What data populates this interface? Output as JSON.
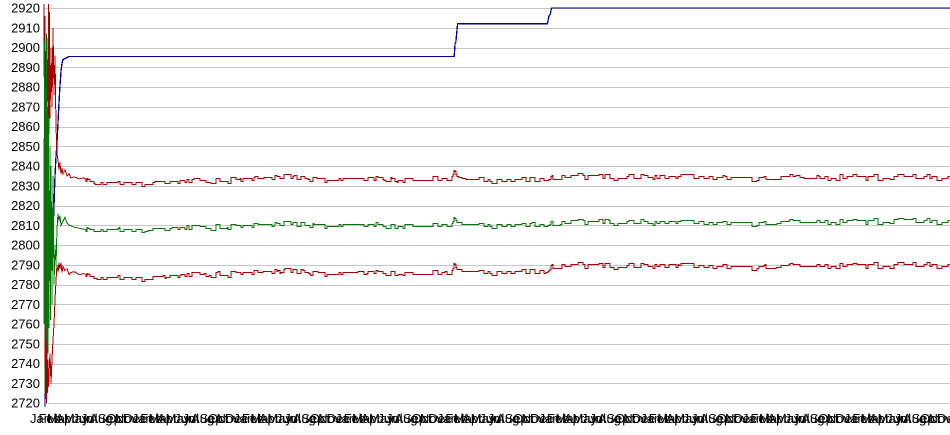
{
  "window": {
    "background": "#ffffff"
  },
  "chart_data": {
    "type": "line",
    "title": "",
    "subtitle": "",
    "legend": "none",
    "grid": true,
    "ylim": [
      2720,
      2920
    ],
    "y_tick_step": 10,
    "y_tick_labels": [
      "2920",
      "2910",
      "2900",
      "2890",
      "2880",
      "2870",
      "2860",
      "2850",
      "2840",
      "2830",
      "2820",
      "2810",
      "2800",
      "2790",
      "2780",
      "2770",
      "2760",
      "2750",
      "2740",
      "2730",
      "2720"
    ],
    "x_axis": {
      "labels_cycle": [
        "Jan",
        "Feb",
        "Mar",
        "Apr",
        "May",
        "Jun",
        "Jul",
        "Aug",
        "Sep",
        "Oct",
        "Nov",
        "Dec"
      ],
      "repeat": 9,
      "note_first_visible_label": "Jan"
    },
    "colors": {
      "navy": "#0000a0",
      "red": "#a80000",
      "green": "#087408",
      "gridline": "#c6c6c6",
      "label": "#000000"
    },
    "noise": {
      "seed": 7,
      "start_t": 5.0,
      "amp": 1.1
    },
    "series": [
      {
        "name": "navy-upper-step",
        "color_key": "navy",
        "noisy": false,
        "width": 1.3,
        "points": [
          [
            0.12,
            2718
          ],
          [
            0.16,
            2760
          ],
          [
            0.2,
            2755
          ],
          [
            0.36,
            2768
          ],
          [
            0.48,
            2780
          ],
          [
            0.6,
            2790
          ],
          [
            0.72,
            2787
          ],
          [
            0.84,
            2800
          ],
          [
            0.95,
            2810
          ],
          [
            1.07,
            2806
          ],
          [
            1.19,
            2820
          ],
          [
            1.31,
            2835
          ],
          [
            1.43,
            2845
          ],
          [
            1.55,
            2852
          ],
          [
            1.67,
            2862
          ],
          [
            1.79,
            2872
          ],
          [
            1.9,
            2880
          ],
          [
            2.03,
            2888
          ],
          [
            2.15,
            2892
          ],
          [
            2.27,
            2894
          ],
          [
            3.0,
            2895.5
          ],
          [
            48.9,
            2895.5
          ],
          [
            49.0,
            2902
          ],
          [
            49.1,
            2903
          ],
          [
            49.3,
            2912
          ],
          [
            60.0,
            2912
          ],
          [
            60.2,
            2916
          ],
          [
            60.35,
            2917
          ],
          [
            60.5,
            2920
          ],
          [
            108,
            2920
          ]
        ]
      },
      {
        "name": "red-upper-band",
        "color_key": "red",
        "noisy": true,
        "width": 1,
        "points": [
          [
            0.0,
            2922
          ],
          [
            0.06,
            2850
          ],
          [
            0.12,
            2916
          ],
          [
            0.24,
            2848
          ],
          [
            0.36,
            2905
          ],
          [
            0.48,
            2862
          ],
          [
            0.55,
            2922
          ],
          [
            0.6,
            2856
          ],
          [
            0.66,
            2918
          ],
          [
            0.72,
            2864
          ],
          [
            0.84,
            2900
          ],
          [
            0.95,
            2870
          ],
          [
            1.07,
            2910
          ],
          [
            1.19,
            2876
          ],
          [
            1.31,
            2896
          ],
          [
            1.43,
            2860
          ],
          [
            1.55,
            2846
          ],
          [
            1.67,
            2843
          ],
          [
            1.79,
            2838
          ],
          [
            1.9,
            2842
          ],
          [
            2.03,
            2836
          ],
          [
            2.15,
            2839
          ],
          [
            2.27,
            2836
          ],
          [
            2.5,
            2838
          ],
          [
            2.75,
            2835
          ],
          [
            3.0,
            2836
          ],
          [
            3.2,
            2834
          ],
          [
            3.6,
            2834.5
          ],
          [
            4.2,
            2833.5
          ],
          [
            4.8,
            2834
          ],
          [
            5.4,
            2832.5
          ],
          [
            6.6,
            2832
          ],
          [
            9,
            2831.8
          ],
          [
            12.5,
            2832
          ],
          [
            14.9,
            2832.5
          ],
          [
            18.5,
            2833
          ],
          [
            22,
            2833.5
          ],
          [
            25.7,
            2834
          ],
          [
            28.6,
            2835
          ],
          [
            30.4,
            2835.3
          ],
          [
            32.8,
            2834
          ],
          [
            36.4,
            2834
          ],
          [
            40,
            2834.3
          ],
          [
            43.6,
            2834
          ],
          [
            48.7,
            2834
          ],
          [
            48.9,
            2837.8
          ],
          [
            49.2,
            2834
          ],
          [
            50.7,
            2833.5
          ],
          [
            54.3,
            2833.5
          ],
          [
            57.9,
            2833.6
          ],
          [
            60,
            2833.8
          ],
          [
            60.5,
            2835.3
          ],
          [
            63.8,
            2835.5
          ],
          [
            68.6,
            2835
          ],
          [
            72.2,
            2835.3
          ],
          [
            78.2,
            2835
          ],
          [
            81.7,
            2834.3
          ],
          [
            85.3,
            2834.2
          ],
          [
            90.1,
            2835.3
          ],
          [
            96.1,
            2835
          ],
          [
            102,
            2835.2
          ],
          [
            108,
            2834.8
          ]
        ]
      },
      {
        "name": "green-mid-band",
        "color_key": "green",
        "noisy": true,
        "width": 1,
        "points": [
          [
            0.0,
            2760
          ],
          [
            0.05,
            2903
          ],
          [
            0.12,
            2725
          ],
          [
            0.2,
            2880
          ],
          [
            0.24,
            2735
          ],
          [
            0.3,
            2907
          ],
          [
            0.36,
            2730
          ],
          [
            0.42,
            2870
          ],
          [
            0.48,
            2745
          ],
          [
            0.55,
            2865
          ],
          [
            0.6,
            2758
          ],
          [
            0.72,
            2850
          ],
          [
            0.78,
            2762
          ],
          [
            0.84,
            2840
          ],
          [
            0.95,
            2770
          ],
          [
            1.07,
            2835
          ],
          [
            1.19,
            2780
          ],
          [
            1.31,
            2800
          ],
          [
            1.43,
            2790
          ],
          [
            1.55,
            2808
          ],
          [
            1.67,
            2816
          ],
          [
            1.79,
            2812
          ],
          [
            1.9,
            2815
          ],
          [
            2.03,
            2810
          ],
          [
            2.27,
            2812
          ],
          [
            2.5,
            2814
          ],
          [
            2.75,
            2811
          ],
          [
            3.0,
            2810
          ],
          [
            3.6,
            2809
          ],
          [
            4.2,
            2808.5
          ],
          [
            5.4,
            2808
          ],
          [
            7.8,
            2808
          ],
          [
            11.3,
            2808.3
          ],
          [
            14.9,
            2808.8
          ],
          [
            18.5,
            2809.5
          ],
          [
            22,
            2810
          ],
          [
            25.7,
            2810.5
          ],
          [
            28.6,
            2811.3
          ],
          [
            30.4,
            2811.8
          ],
          [
            32.8,
            2810.5
          ],
          [
            36.4,
            2810.5
          ],
          [
            40,
            2810.8
          ],
          [
            43.6,
            2810.5
          ],
          [
            48.7,
            2810.6
          ],
          [
            48.9,
            2813.8
          ],
          [
            49.2,
            2810.8
          ],
          [
            50.7,
            2810.5
          ],
          [
            54.3,
            2810.5
          ],
          [
            57.9,
            2810.6
          ],
          [
            60,
            2810.8
          ],
          [
            60.5,
            2812.3
          ],
          [
            63.8,
            2812.5
          ],
          [
            68.6,
            2812
          ],
          [
            72.2,
            2812.3
          ],
          [
            78.2,
            2812
          ],
          [
            81.7,
            2811.5
          ],
          [
            85.3,
            2811.4
          ],
          [
            90.1,
            2812.8
          ],
          [
            96.1,
            2812.5
          ],
          [
            102,
            2813
          ],
          [
            108,
            2812.8
          ]
        ]
      },
      {
        "name": "red-lower-band",
        "color_key": "red",
        "noisy": true,
        "width": 1,
        "points": [
          [
            0.12,
            2758
          ],
          [
            0.18,
            2722
          ],
          [
            0.24,
            2752
          ],
          [
            0.3,
            2720
          ],
          [
            0.36,
            2748
          ],
          [
            0.42,
            2725
          ],
          [
            0.48,
            2742
          ],
          [
            0.55,
            2728
          ],
          [
            0.6,
            2735
          ],
          [
            0.72,
            2745
          ],
          [
            0.84,
            2730
          ],
          [
            0.95,
            2742
          ],
          [
            1.07,
            2752
          ],
          [
            1.19,
            2760
          ],
          [
            1.31,
            2772
          ],
          [
            1.43,
            2782
          ],
          [
            1.55,
            2790
          ],
          [
            1.67,
            2786
          ],
          [
            1.79,
            2791
          ],
          [
            1.9,
            2788
          ],
          [
            2.03,
            2791
          ],
          [
            2.15,
            2786
          ],
          [
            2.27,
            2789
          ],
          [
            2.5,
            2787
          ],
          [
            2.75,
            2788
          ],
          [
            3.0,
            2785
          ],
          [
            3.2,
            2786
          ],
          [
            3.6,
            2786.5
          ],
          [
            4.2,
            2785
          ],
          [
            4.8,
            2785.5
          ],
          [
            5.4,
            2784.5
          ],
          [
            6.6,
            2784
          ],
          [
            9,
            2783.8
          ],
          [
            12.5,
            2784
          ],
          [
            14.9,
            2784.8
          ],
          [
            18.5,
            2785.5
          ],
          [
            22,
            2786
          ],
          [
            25.7,
            2786.5
          ],
          [
            28.6,
            2787.3
          ],
          [
            30.4,
            2787.8
          ],
          [
            32.8,
            2786.5
          ],
          [
            36.4,
            2786.5
          ],
          [
            40,
            2786.8
          ],
          [
            43.6,
            2786.5
          ],
          [
            48.7,
            2786.6
          ],
          [
            48.9,
            2790.5
          ],
          [
            49.2,
            2787
          ],
          [
            50.7,
            2786.8
          ],
          [
            54.3,
            2786.8
          ],
          [
            57.9,
            2787
          ],
          [
            60,
            2787.2
          ],
          [
            60.5,
            2790.3
          ],
          [
            63.8,
            2790.5
          ],
          [
            68.6,
            2790
          ],
          [
            72.2,
            2790.3
          ],
          [
            78.2,
            2790
          ],
          [
            81.7,
            2789.3
          ],
          [
            85.3,
            2789.2
          ],
          [
            90.1,
            2790.5
          ],
          [
            96.1,
            2790.3
          ],
          [
            102,
            2790.6
          ],
          [
            108,
            2790.3
          ]
        ]
      }
    ]
  }
}
